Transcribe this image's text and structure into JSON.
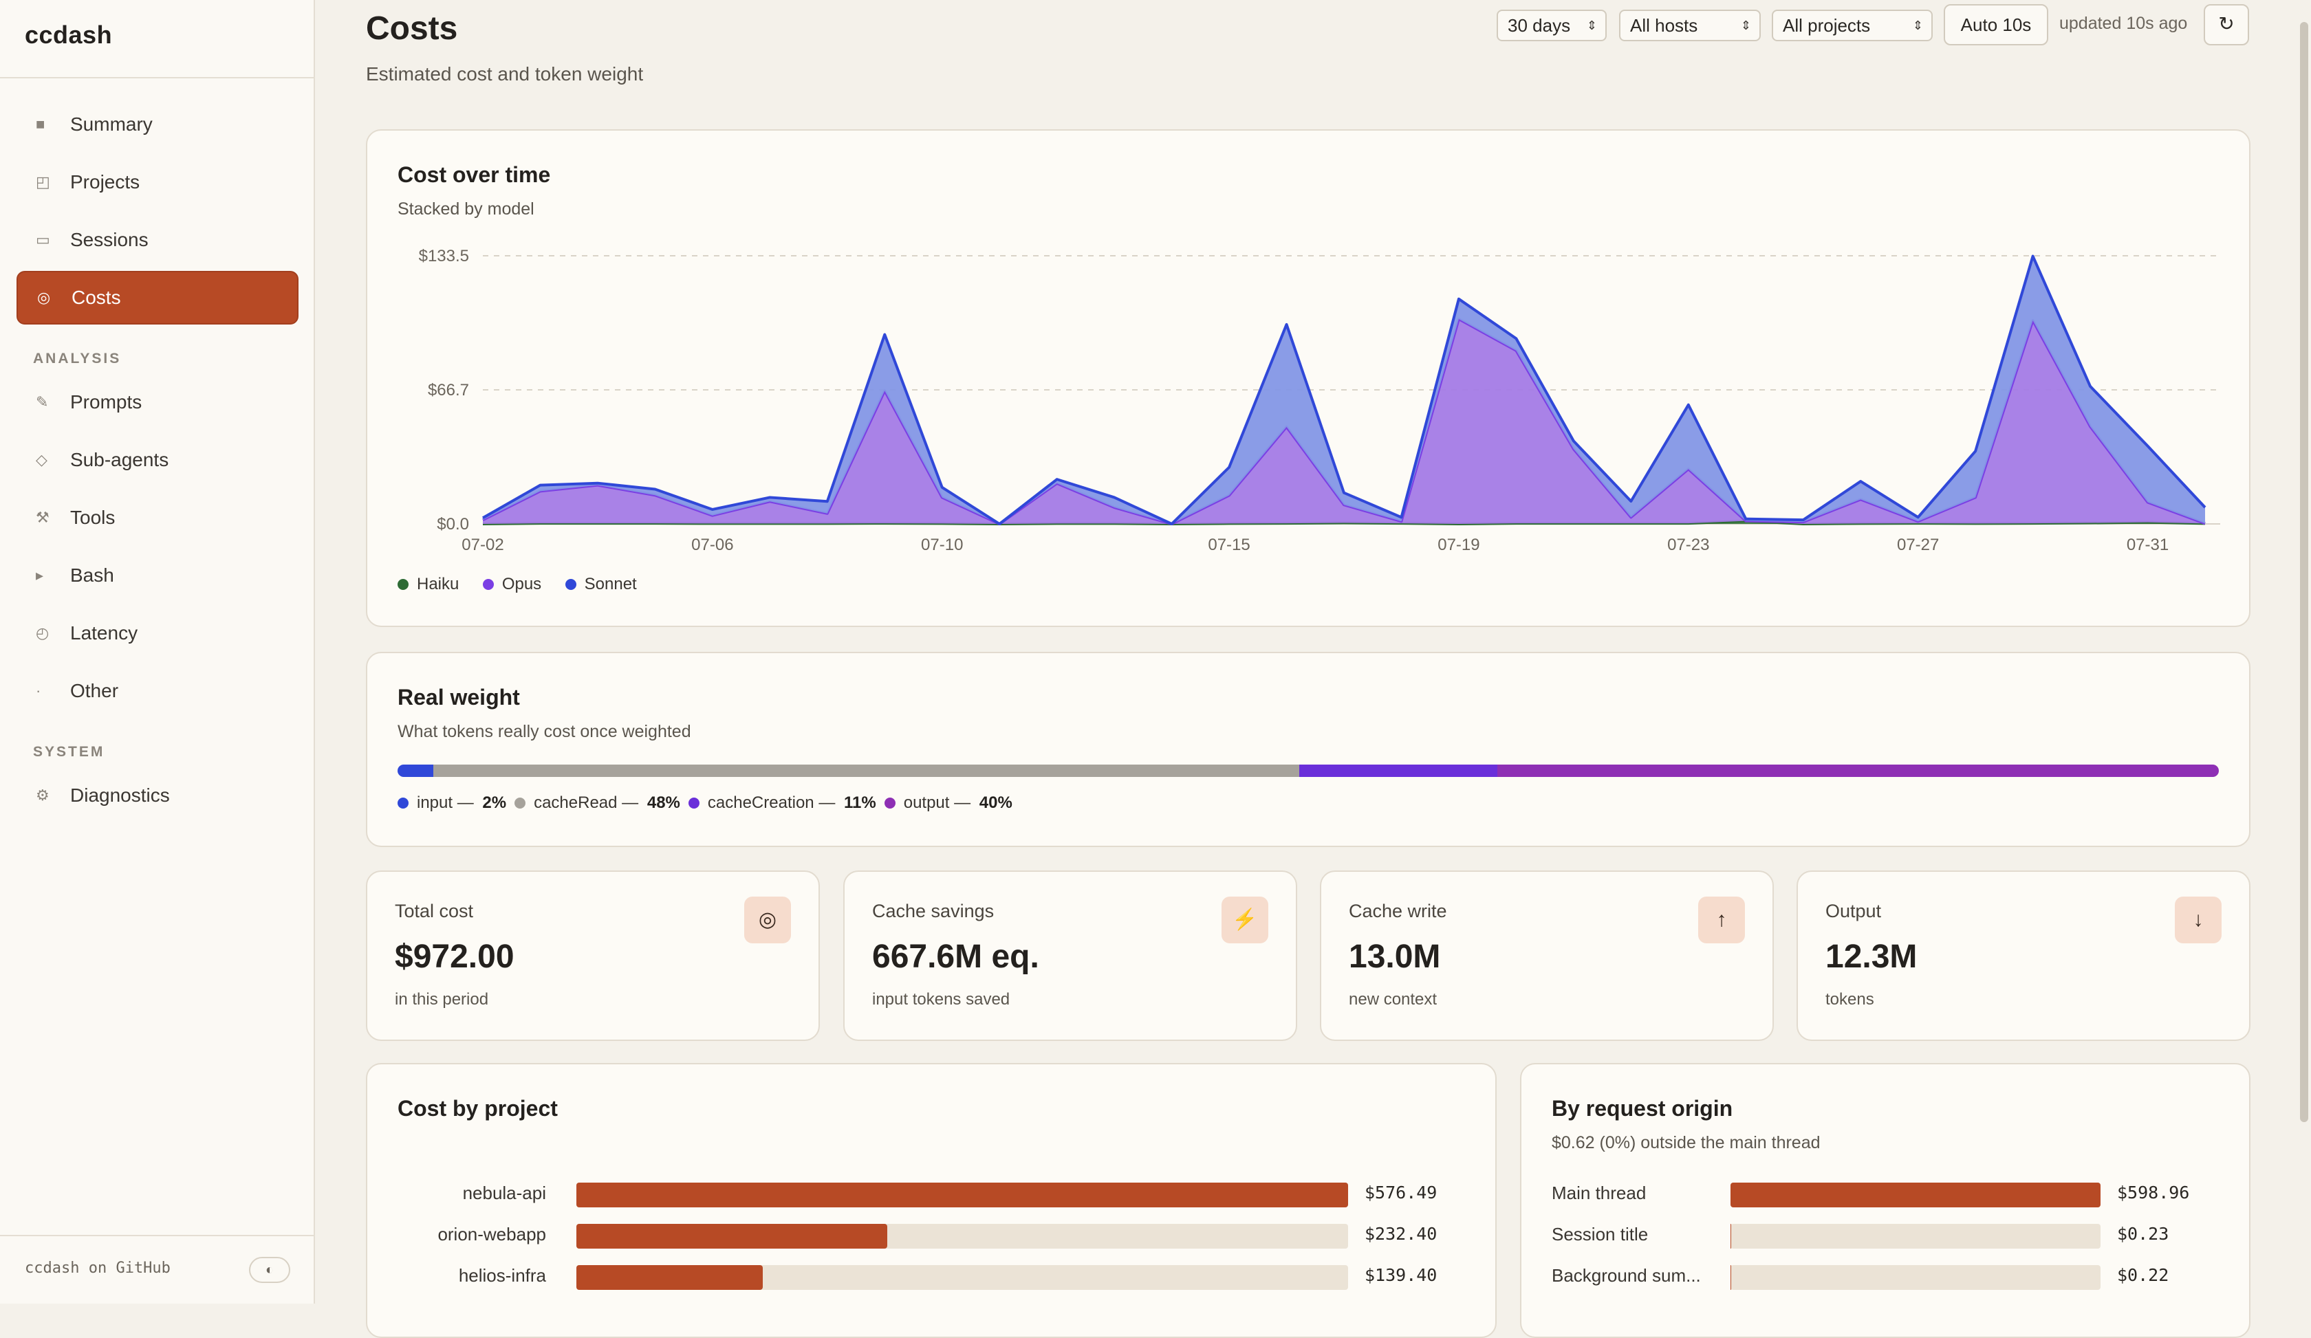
{
  "app": {
    "brand": "ccdash",
    "github_label": "ccdash on GitHub"
  },
  "sidebar": {
    "items": [
      {
        "label": "Summary",
        "icon": "square-icon"
      },
      {
        "label": "Projects",
        "icon": "projects-icon"
      },
      {
        "label": "Sessions",
        "icon": "rectangle-icon"
      },
      {
        "label": "Costs",
        "icon": "coin-icon",
        "active": true
      }
    ],
    "analysis_label": "ANALYSIS",
    "analysis_items": [
      {
        "label": "Prompts",
        "icon": "pencil-icon"
      },
      {
        "label": "Sub-agents",
        "icon": "diamond-icon"
      },
      {
        "label": "Tools",
        "icon": "tools-icon"
      },
      {
        "label": "Bash",
        "icon": "terminal-icon"
      },
      {
        "label": "Latency",
        "icon": "clock-icon"
      },
      {
        "label": "Other",
        "icon": "dot-icon"
      }
    ],
    "system_label": "SYSTEM",
    "system_items": [
      {
        "label": "Diagnostics",
        "icon": "gear-icon"
      }
    ]
  },
  "header": {
    "title": "Costs",
    "subtitle": "Estimated cost and token weight",
    "range_select": "30 days",
    "hosts_select": "All hosts",
    "projects_select": "All projects",
    "auto_label": "Auto 10s",
    "updated_text": "updated 10s ago"
  },
  "cost_chart": {
    "title": "Cost over time",
    "subtitle": "Stacked by model",
    "legend": [
      "Haiku",
      "Opus",
      "Sonnet"
    ]
  },
  "chart_data": {
    "type": "area",
    "stacked": true,
    "x": [
      "07-02",
      "07-03",
      "07-04",
      "07-05",
      "07-06",
      "07-07",
      "07-08",
      "07-09",
      "07-10",
      "07-11",
      "07-12",
      "07-13",
      "07-14",
      "07-15",
      "07-16",
      "07-17",
      "07-18",
      "07-19",
      "07-20",
      "07-21",
      "07-22",
      "07-23",
      "07-24",
      "07-25",
      "07-26",
      "07-27",
      "07-28",
      "07-29",
      "07-30",
      "07-31",
      "08-01"
    ],
    "x_tick_labels": [
      "07-02",
      "07-06",
      "07-10",
      "07-15",
      "07-19",
      "07-23",
      "07-27",
      "07-31"
    ],
    "y_tick_labels": [
      "$0.0",
      "$66.7",
      "$133.5"
    ],
    "ylim": [
      0,
      133.5
    ],
    "grid": true,
    "legend_position": "bottom-left",
    "series": [
      {
        "name": "Haiku",
        "color": "#2e6b35",
        "values": [
          0,
          0.3,
          0.3,
          0.3,
          0.2,
          0.2,
          0.2,
          0.3,
          0.2,
          0,
          0.2,
          0.2,
          0,
          0.2,
          0.3,
          0.5,
          0.3,
          0,
          0.3,
          0.3,
          0.3,
          0.3,
          1.5,
          0,
          0.2,
          0.3,
          0.2,
          0.3,
          0.5,
          0.8,
          0.2
        ]
      },
      {
        "name": "Opus",
        "color": "#7b3fe4",
        "values": [
          2,
          16,
          19,
          14,
          4,
          11,
          5,
          66,
          13,
          0,
          20,
          8,
          0,
          14,
          48,
          9,
          1,
          102,
          86,
          37,
          3,
          27,
          0,
          1,
          12,
          1,
          13,
          101,
          48,
          10,
          0
        ]
      },
      {
        "name": "Sonnet",
        "color": "#3048d8",
        "values": [
          1,
          3,
          1,
          3,
          3,
          2,
          6,
          28,
          5,
          0,
          2,
          5,
          0,
          14,
          51,
          6,
          2,
          10,
          6,
          4,
          8,
          32,
          1,
          1,
          9,
          2,
          23,
          32,
          20,
          28,
          8
        ]
      }
    ]
  },
  "weight": {
    "title": "Real weight",
    "subtitle": "What tokens really cost once weighted",
    "segments": [
      {
        "name": "input",
        "pct": 2,
        "pct_label": "2%",
        "color": "#3048d8"
      },
      {
        "name": "cacheRead",
        "pct": 48,
        "pct_label": "48%",
        "color": "#a6a29b"
      },
      {
        "name": "cacheCreation",
        "pct": 11,
        "pct_label": "11%",
        "color": "#6a2fd9"
      },
      {
        "name": "output",
        "pct": 40,
        "pct_label": "40%",
        "color": "#8e2fb4"
      }
    ]
  },
  "stats": [
    {
      "label": "Total cost",
      "value": "$972.00",
      "note": "in this period",
      "icon": "coin-icon",
      "glyph": "◎"
    },
    {
      "label": "Cache savings",
      "value": "667.6M eq.",
      "note": "input tokens saved",
      "icon": "bolt-icon",
      "glyph": "⚡"
    },
    {
      "label": "Cache write",
      "value": "13.0M",
      "note": "new context",
      "icon": "arrow-up-icon",
      "glyph": "↑"
    },
    {
      "label": "Output",
      "value": "12.3M",
      "note": "tokens",
      "icon": "arrow-down-icon",
      "glyph": "↓"
    }
  ],
  "cost_by_project": {
    "title": "Cost by project",
    "rows": [
      {
        "label": "nebula-api",
        "value": "$576.49",
        "amount": 576.49
      },
      {
        "label": "orion-webapp",
        "value": "$232.40",
        "amount": 232.4
      },
      {
        "label": "helios-infra",
        "value": "$139.40",
        "amount": 139.4
      }
    ]
  },
  "by_origin": {
    "title": "By request origin",
    "subtitle": "$0.62 (0%) outside the main thread",
    "rows": [
      {
        "label": "Main thread",
        "value": "$598.96",
        "amount": 598.96
      },
      {
        "label": "Session title",
        "value": "$0.23",
        "amount": 0.23
      },
      {
        "label": "Background sum...",
        "value": "$0.22",
        "amount": 0.22
      }
    ]
  }
}
